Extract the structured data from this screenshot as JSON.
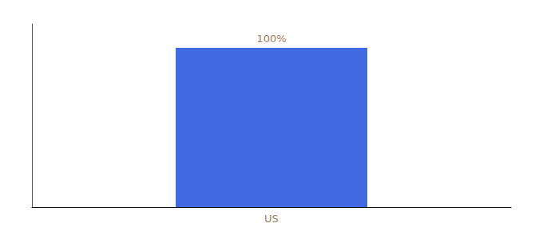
{
  "chart_data": {
    "type": "bar",
    "categories": [
      "US"
    ],
    "values": [
      100
    ],
    "value_labels": [
      "100%"
    ],
    "color": "#4169e1",
    "ylim": [
      0,
      115
    ],
    "data_labels": true,
    "tick_labels": "x",
    "grid": false
  }
}
